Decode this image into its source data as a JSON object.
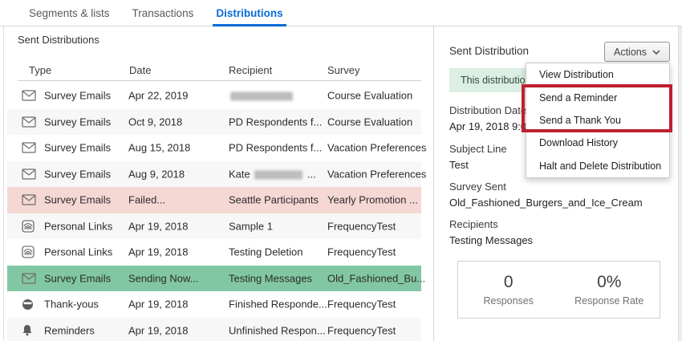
{
  "tabs": [
    {
      "label": "Segments & lists",
      "active": false
    },
    {
      "label": "Transactions",
      "active": false
    },
    {
      "label": "Distributions",
      "active": true
    }
  ],
  "left_panel": {
    "title": "Sent Distributions",
    "table": {
      "headers": {
        "type": "Type",
        "date": "Date",
        "recipient": "Recipient",
        "survey": "Survey"
      },
      "rows": [
        {
          "icon": "envelope-icon",
          "type": "Survey Emails",
          "date": "Apr 22, 2019",
          "recipient": {
            "prefix": "",
            "redacted_width": 78,
            "suffix": ""
          },
          "survey": "Course Evaluation",
          "highlight": ""
        },
        {
          "icon": "envelope-icon",
          "type": "Survey Emails",
          "date": "Oct 9, 2018",
          "recipient": "PD Respondents f...",
          "survey": "Course Evaluation",
          "highlight": ""
        },
        {
          "icon": "envelope-icon",
          "type": "Survey Emails",
          "date": "Aug 15, 2018",
          "recipient": "PD Respondents f...",
          "survey": "Vacation Preferences",
          "highlight": ""
        },
        {
          "icon": "envelope-icon",
          "type": "Survey Emails",
          "date": "Aug 9, 2018",
          "recipient": {
            "prefix": "Kate ",
            "redacted_width": 60,
            "suffix": " ..."
          },
          "survey": "Vacation Preferences",
          "highlight": ""
        },
        {
          "icon": "envelope-icon",
          "type": "Survey Emails",
          "date": "Failed...",
          "recipient": "Seattle Participants",
          "survey": "Yearly Promotion ...",
          "highlight": "failed"
        },
        {
          "icon": "fingerprint-icon",
          "type": "Personal Links",
          "date": "Apr 19, 2018",
          "recipient": "Sample 1",
          "survey": "FrequencyTest",
          "highlight": ""
        },
        {
          "icon": "fingerprint-icon",
          "type": "Personal Links",
          "date": "Apr 19, 2018",
          "recipient": "Testing Deletion",
          "survey": "FrequencyTest",
          "highlight": ""
        },
        {
          "icon": "envelope-icon",
          "type": "Survey Emails",
          "date": "Sending Now...",
          "recipient": "Testing Messages",
          "survey": "Old_Fashioned_Bu...",
          "highlight": "sending"
        },
        {
          "icon": "thank-you-icon",
          "type": "Thank-yous",
          "date": "Apr 19, 2018",
          "recipient": "Finished Responde...",
          "survey": "FrequencyTest",
          "highlight": ""
        },
        {
          "icon": "bell-icon",
          "type": "Reminders",
          "date": "Apr 19, 2018",
          "recipient": "Unfinished Respon...",
          "survey": "FrequencyTest",
          "highlight": ""
        }
      ]
    }
  },
  "right_panel": {
    "title": "Sent Distribution",
    "actions_button_label": "Actions",
    "banner_text": "This distribution",
    "fields": [
      {
        "label": "Distribution Date",
        "value": "Apr 19, 2018 9:00"
      },
      {
        "label": "Subject Line",
        "value": "Test"
      },
      {
        "label": "Survey Sent",
        "value": "Old_Fashioned_Burgers_and_Ice_Cream"
      },
      {
        "label": "Recipients",
        "value": "Testing Messages"
      }
    ],
    "stats": [
      {
        "value": "0",
        "label": "Responses"
      },
      {
        "value": "0%",
        "label": "Response Rate"
      }
    ]
  },
  "actions_menu": {
    "items": [
      "View Distribution",
      "Send a Reminder",
      "Send a Thank You",
      "Download History",
      "Halt and Delete Distribution"
    ],
    "highlighted_items": [
      "Send a Reminder",
      "Send a Thank You"
    ]
  },
  "colors": {
    "accent_blue": "#0b6cd8",
    "failed_row_bg": "#f5d8d4",
    "sending_row_bg": "#82c7a3",
    "banner_bg": "#dcefe4",
    "annotation_red": "#bf1f2f"
  }
}
